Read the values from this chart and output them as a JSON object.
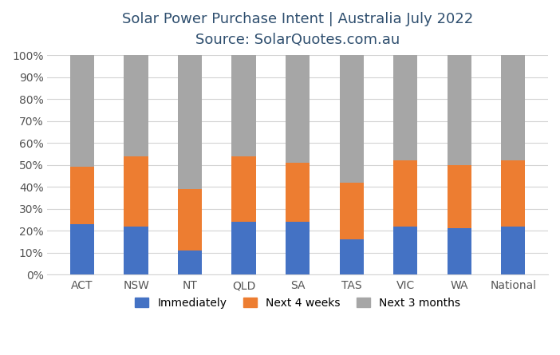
{
  "categories": [
    "ACT",
    "NSW",
    "NT",
    "QLD",
    "SA",
    "TAS",
    "VIC",
    "WA",
    "National"
  ],
  "immediately": [
    23,
    22,
    11,
    24,
    24,
    16,
    22,
    21,
    22
  ],
  "next_4_weeks": [
    26,
    32,
    28,
    30,
    27,
    26,
    30,
    29,
    30
  ],
  "next_3_months": [
    51,
    46,
    61,
    46,
    49,
    58,
    48,
    50,
    48
  ],
  "colors": {
    "immediately": "#4472C4",
    "next_4_weeks": "#ED7D31",
    "next_3_months": "#A6A6A6"
  },
  "title_line1": "Solar Power Purchase Intent | Australia July 2022",
  "title_line2": "Source: SolarQuotes.com.au",
  "ylim": [
    0,
    100
  ],
  "yticks": [
    0,
    10,
    20,
    30,
    40,
    50,
    60,
    70,
    80,
    90,
    100
  ],
  "ytick_labels": [
    "0%",
    "10%",
    "20%",
    "30%",
    "40%",
    "50%",
    "60%",
    "70%",
    "80%",
    "90%",
    "100%"
  ],
  "legend_labels": [
    "Immediately",
    "Next 4 weeks",
    "Next 3 months"
  ],
  "background_color": "#FFFFFF",
  "grid_color": "#D3D3D3",
  "title_fontsize": 13,
  "subtitle_fontsize": 12,
  "bar_width": 0.45,
  "title_color": "#2F4F6F",
  "tick_label_fontsize": 10,
  "xtick_fontsize": 10
}
